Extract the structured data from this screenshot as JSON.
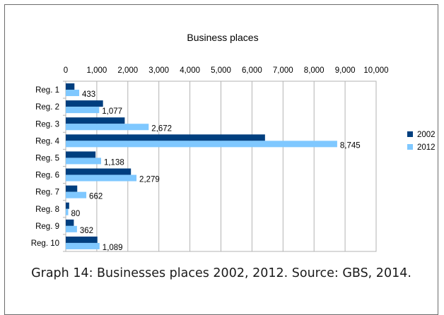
{
  "chart_data": {
    "type": "bar",
    "orientation": "horizontal",
    "title": "Business places",
    "xlabel": "",
    "ylabel": "",
    "categories": [
      "Reg. 1",
      "Reg. 2",
      "Reg. 3",
      "Reg. 4",
      "Reg. 5",
      "Reg. 6",
      "Reg. 7",
      "Reg. 8",
      "Reg. 9",
      "Reg. 10"
    ],
    "series": [
      {
        "name": "2002",
        "color": "#003f7f",
        "values": [
          280,
          1200,
          1900,
          6420,
          960,
          2100,
          370,
          110,
          260,
          1020
        ]
      },
      {
        "name": "2012",
        "color": "#7fc8ff",
        "values": [
          433,
          1077,
          2672,
          8745,
          1138,
          2279,
          662,
          80,
          362,
          1089
        ]
      }
    ],
    "data_labels_series": "2012",
    "data_labels": [
      "433",
      "1,077",
      "2,672",
      "8,745",
      "1,138",
      "2,279",
      "662",
      "80",
      "362",
      "1,089"
    ],
    "xlim": [
      0,
      10000
    ],
    "xticks": [
      0,
      1000,
      2000,
      3000,
      4000,
      5000,
      6000,
      7000,
      8000,
      9000,
      10000
    ],
    "xtick_labels": [
      "0",
      "1,000",
      "2,000",
      "3,000",
      "4,000",
      "5,000",
      "6,000",
      "7,000",
      "8,000",
      "9,000",
      "10,000"
    ],
    "x_axis_position": "top",
    "grid": true,
    "legend": {
      "position": "right",
      "entries": [
        "2002",
        "2012"
      ]
    }
  },
  "caption": "Graph 14: Businesses places 2002, 2012. Source: GBS, 2014."
}
